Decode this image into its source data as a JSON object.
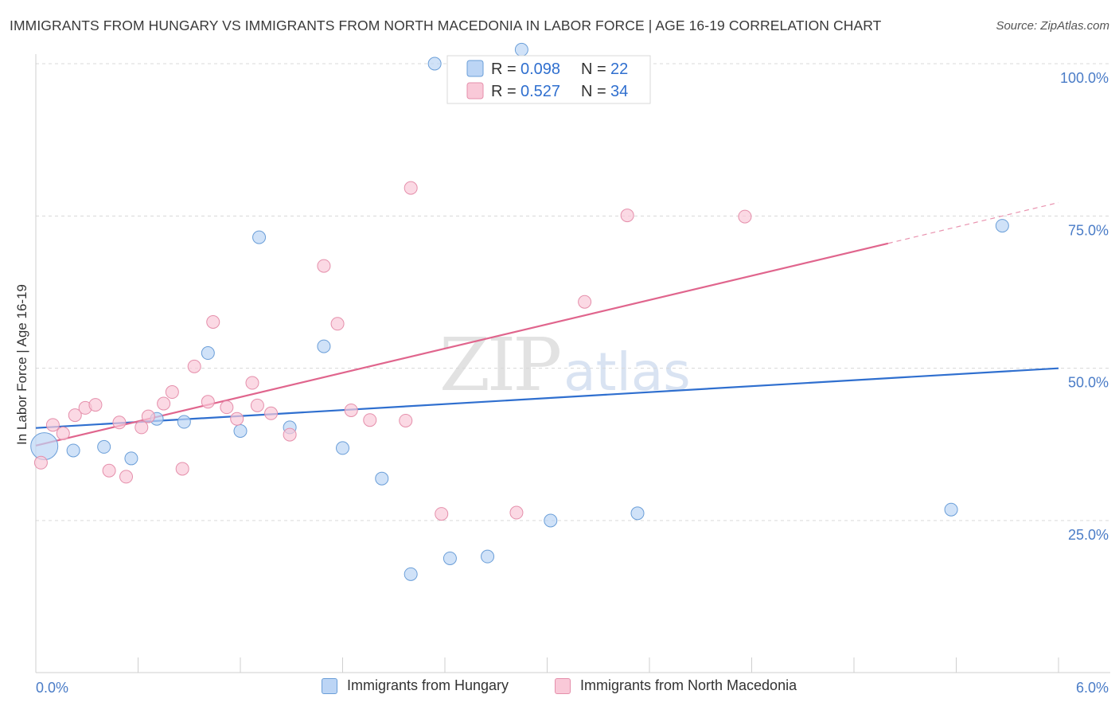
{
  "header": {
    "title": "IMMIGRANTS FROM HUNGARY VS IMMIGRANTS FROM NORTH MACEDONIA IN LABOR FORCE | AGE 16-19 CORRELATION CHART",
    "source": "Source: ZipAtlas.com"
  },
  "watermark": {
    "zip": "ZIP",
    "atlas": "atlas"
  },
  "colors": {
    "hungary_fill": "#bcd5f5",
    "hungary_stroke": "#6a9ed8",
    "hungary_line": "#2f6fcf",
    "macedonia_fill": "#f9c9d8",
    "macedonia_stroke": "#e58fab",
    "macedonia_line": "#e0658d",
    "tick_text": "#4a7cc7",
    "grid": "#d8d8d8"
  },
  "legend": {
    "r_label": "R =",
    "n_label": "N =",
    "rows": [
      {
        "r": "0.098",
        "n": "22"
      },
      {
        "r": "0.527",
        "n": "34"
      }
    ]
  },
  "bottom_legend": {
    "hungary": "Immigrants from Hungary",
    "macedonia": "Immigrants from North Macedonia"
  },
  "chart_data": {
    "type": "scatter",
    "title": "IMMIGRANTS FROM HUNGARY VS IMMIGRANTS FROM NORTH MACEDONIA IN LABOR FORCE | AGE 16-19 CORRELATION CHART",
    "xlabel": "",
    "ylabel": "In Labor Force | Age 16-19",
    "xlim": [
      0,
      6
    ],
    "ylim": [
      0,
      100
    ],
    "x_tick_labels": [
      "0.0%",
      "6.0%"
    ],
    "y_ticks": [
      25,
      50,
      75,
      100
    ],
    "y_tick_labels": [
      "25.0%",
      "50.0%",
      "75.0%",
      "100.0%"
    ],
    "grid": true,
    "series": [
      {
        "name": "Immigrants from Hungary",
        "R": 0.098,
        "N": 22,
        "trend": {
          "x": [
            0,
            6
          ],
          "y": [
            40.2,
            50.0
          ]
        },
        "points": [
          {
            "x": 0.05,
            "y": 37.2,
            "big": true
          },
          {
            "x": 0.22,
            "y": 36.5
          },
          {
            "x": 0.4,
            "y": 37.1
          },
          {
            "x": 0.56,
            "y": 35.2
          },
          {
            "x": 0.71,
            "y": 41.7
          },
          {
            "x": 0.87,
            "y": 41.2
          },
          {
            "x": 1.01,
            "y": 52.5
          },
          {
            "x": 1.2,
            "y": 39.7
          },
          {
            "x": 1.31,
            "y": 71.5
          },
          {
            "x": 1.49,
            "y": 40.3
          },
          {
            "x": 1.69,
            "y": 53.6
          },
          {
            "x": 1.8,
            "y": 36.9
          },
          {
            "x": 2.03,
            "y": 31.9
          },
          {
            "x": 2.2,
            "y": 16.2
          },
          {
            "x": 2.34,
            "y": 100.0
          },
          {
            "x": 2.43,
            "y": 18.8
          },
          {
            "x": 2.65,
            "y": 19.1
          },
          {
            "x": 2.85,
            "y": 102.3
          },
          {
            "x": 3.02,
            "y": 25.0
          },
          {
            "x": 3.53,
            "y": 26.2
          },
          {
            "x": 5.37,
            "y": 26.8
          },
          {
            "x": 5.67,
            "y": 73.4
          }
        ]
      },
      {
        "name": "Immigrants from North Macedonia",
        "R": 0.527,
        "N": 34,
        "trend": {
          "x": [
            0,
            5.0
          ],
          "y": [
            37.3,
            70.5
          ]
        },
        "trend_dashed": {
          "x": [
            5.0,
            6.0
          ],
          "y": [
            70.5,
            77.2
          ]
        },
        "points": [
          {
            "x": 0.03,
            "y": 34.5
          },
          {
            "x": 0.1,
            "y": 40.7
          },
          {
            "x": 0.16,
            "y": 39.3
          },
          {
            "x": 0.23,
            "y": 42.3
          },
          {
            "x": 0.29,
            "y": 43.5
          },
          {
            "x": 0.35,
            "y": 44.0
          },
          {
            "x": 0.43,
            "y": 33.2
          },
          {
            "x": 0.49,
            "y": 41.1
          },
          {
            "x": 0.53,
            "y": 32.2
          },
          {
            "x": 0.62,
            "y": 40.3
          },
          {
            "x": 0.66,
            "y": 42.1
          },
          {
            "x": 0.75,
            "y": 44.2
          },
          {
            "x": 0.8,
            "y": 46.1
          },
          {
            "x": 0.86,
            "y": 33.5
          },
          {
            "x": 0.93,
            "y": 50.3
          },
          {
            "x": 1.01,
            "y": 44.5
          },
          {
            "x": 1.04,
            "y": 57.6
          },
          {
            "x": 1.12,
            "y": 43.6
          },
          {
            "x": 1.18,
            "y": 41.7
          },
          {
            "x": 1.27,
            "y": 47.6
          },
          {
            "x": 1.3,
            "y": 43.9
          },
          {
            "x": 1.38,
            "y": 42.6
          },
          {
            "x": 1.49,
            "y": 39.1
          },
          {
            "x": 1.69,
            "y": 66.8
          },
          {
            "x": 1.77,
            "y": 57.3
          },
          {
            "x": 1.85,
            "y": 43.1
          },
          {
            "x": 1.96,
            "y": 41.5
          },
          {
            "x": 2.17,
            "y": 41.4
          },
          {
            "x": 2.2,
            "y": 79.6
          },
          {
            "x": 2.38,
            "y": 26.1
          },
          {
            "x": 2.82,
            "y": 26.3
          },
          {
            "x": 3.22,
            "y": 60.9
          },
          {
            "x": 3.47,
            "y": 75.1
          },
          {
            "x": 4.16,
            "y": 74.9
          }
        ]
      }
    ]
  }
}
